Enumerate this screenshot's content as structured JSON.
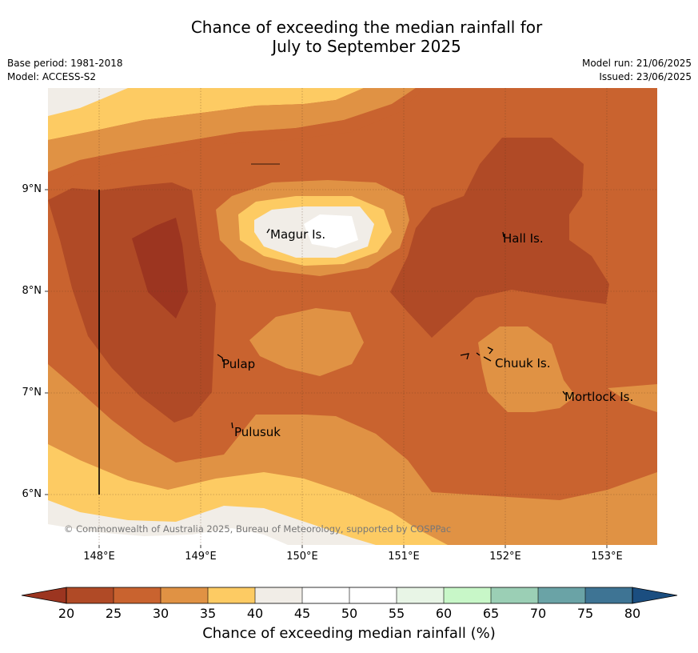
{
  "title_line1": "Chance of exceeding the median rainfall for",
  "title_line2": "July to September 2025",
  "meta": {
    "base_period": "Base period: 1981-2018",
    "model": "Model: ACCESS-S2",
    "model_run": "Model run: 21/06/2025",
    "issued": "Issued: 23/06/2025"
  },
  "map": {
    "lon_ticks": [
      "148°E",
      "149°E",
      "150°E",
      "151°E",
      "152°E",
      "153°E"
    ],
    "lat_ticks": [
      "9°N",
      "8°N",
      "7°N",
      "6°N"
    ],
    "places": [
      {
        "name": "Magur Is."
      },
      {
        "name": "Hall Is."
      },
      {
        "name": "Pulap"
      },
      {
        "name": "Chuuk Is."
      },
      {
        "name": "Mortlock Is."
      },
      {
        "name": "Pulusuk"
      }
    ],
    "copyright": "© Commonwealth of Australia 2025, Bureau of Meteorology, supported by COSPPac"
  },
  "colorbar": {
    "title": "Chance of exceeding median rainfall (%)",
    "tick_labels": [
      "20",
      "25",
      "30",
      "35",
      "40",
      "45",
      "50",
      "55",
      "60",
      "65",
      "70",
      "75",
      "80"
    ],
    "colors": {
      "below_20": "#9c3520",
      "20_25": "#b04a26",
      "25_30": "#c9632f",
      "30_35": "#e09244",
      "35_40": "#fdcb63",
      "40_45": "#f1ede7",
      "45_50": "#ffffff",
      "50_55": "#ffffff",
      "55_60": "#e8f5e6",
      "60_65": "#c8f7c8",
      "65_70": "#9bcfb5",
      "70_75": "#6aa3a6",
      "75_80": "#3e7494",
      "above_80": "#1b4e80"
    }
  }
}
